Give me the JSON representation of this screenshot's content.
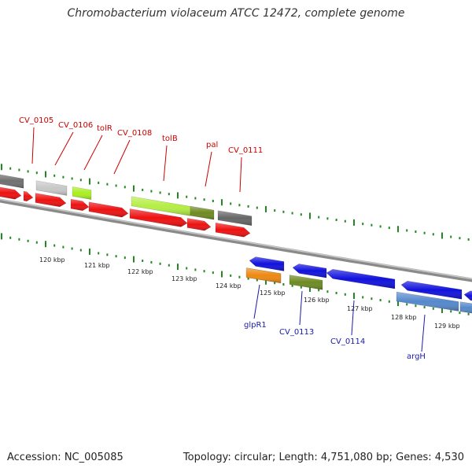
{
  "title": "Chromobacterium violaceum ATCC 12472, complete genome",
  "footer": {
    "accession": "Accession: NC_005085",
    "summary": "Topology: circular; Length: 4,751,080 bp; Genes: 4,530"
  },
  "colors": {
    "backbone": "#8a8a8a",
    "tick": "#228822",
    "top_label": "#cc0000",
    "bottom_label": "#1a1aaa"
  },
  "ruler": [
    "120 kbp",
    "121 kbp",
    "122 kbp",
    "123 kbp",
    "124 kbp",
    "125 kbp",
    "126 kbp",
    "127 kbp",
    "128 kbp",
    "129 kbp"
  ],
  "top_labels": [
    "CV_0105",
    "CV_0106",
    "tolR",
    "CV_0108",
    "tolB",
    "pal",
    "CV_0111"
  ],
  "bottom_labels": [
    "glpR1",
    "CV_0113",
    "CV_0114",
    "argH"
  ]
}
